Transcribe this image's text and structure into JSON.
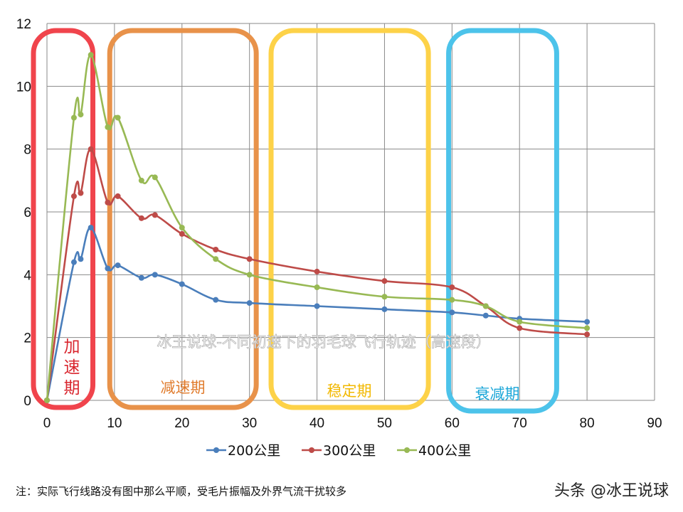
{
  "chart_data": {
    "type": "line",
    "title": "冰王说球-不同初速下的羽毛球飞行轨迹（高速段）",
    "xlabel": "",
    "ylabel": "",
    "xlim": [
      0,
      90
    ],
    "ylim": [
      0,
      12
    ],
    "xticks": [
      0,
      10,
      20,
      30,
      40,
      50,
      60,
      70,
      80,
      90
    ],
    "yticks": [
      0,
      2,
      4,
      6,
      8,
      10,
      12
    ],
    "grid": true,
    "legend": "bottom",
    "x": [
      0,
      4,
      5,
      6.5,
      9,
      10.5,
      14,
      16,
      20,
      25,
      30,
      40,
      50,
      60,
      65,
      70,
      80
    ],
    "series": [
      {
        "name": "200公里",
        "color": "#4a7ebb",
        "values": [
          0,
          4.4,
          4.5,
          5.5,
          4.2,
          4.3,
          3.9,
          4.0,
          3.7,
          3.2,
          3.1,
          3.0,
          2.9,
          2.8,
          2.7,
          2.6,
          2.5
        ]
      },
      {
        "name": "300公里",
        "color": "#be4b48",
        "values": [
          0,
          6.5,
          6.6,
          8.0,
          6.3,
          6.5,
          5.8,
          5.9,
          5.3,
          4.8,
          4.5,
          4.1,
          3.8,
          3.6,
          3.0,
          2.3,
          2.1
        ]
      },
      {
        "name": "400公里",
        "color": "#98b954",
        "values": [
          0,
          9.0,
          9.1,
          11.0,
          8.7,
          9.0,
          7.0,
          7.1,
          5.5,
          4.5,
          4.0,
          3.6,
          3.3,
          3.2,
          3.0,
          2.5,
          2.3
        ]
      }
    ],
    "phases": [
      {
        "label": "加速期",
        "color": "#f0444c",
        "x_range": [
          -2,
          6.8
        ]
      },
      {
        "label": "减速期",
        "color": "#e8924a",
        "x_range": [
          9.3,
          31
        ]
      },
      {
        "label": "稳定期",
        "color": "#fdd248",
        "x_range": [
          33.2,
          56.5
        ]
      },
      {
        "label": "衰减期",
        "color": "#4cc3ea",
        "x_range": [
          59.5,
          75.5
        ]
      }
    ],
    "phase_text_colors": [
      "#d9262e",
      "#e07a2a",
      "#f2b800",
      "#1aa6d8"
    ]
  },
  "footnote": "注：实际飞行线路没有图中那么平顺，受毛片振幅及外界气流干扰较多",
  "brand": "头条 @冰王说球"
}
